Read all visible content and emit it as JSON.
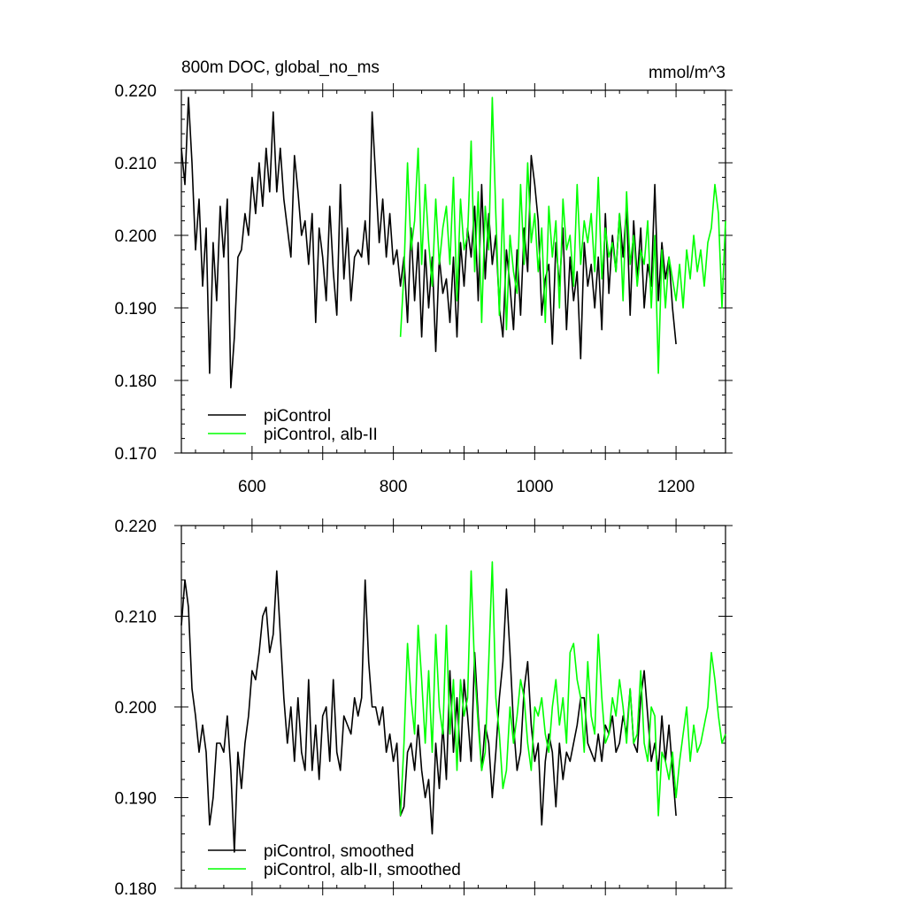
{
  "chart_data": [
    {
      "type": "line",
      "title": "800m DOC, global_no_ms",
      "units": "mmol/m^3",
      "xlim": [
        500,
        1270
      ],
      "ylim": [
        0.17,
        0.22
      ],
      "x_ticks": [
        600,
        800,
        1000,
        1200
      ],
      "x_tick_labels": [
        "600",
        "800",
        "1000",
        "1200"
      ],
      "y_ticks": [
        0.17,
        0.18,
        0.19,
        0.2,
        0.21,
        0.22
      ],
      "y_tick_labels": [
        "0.170",
        "0.180",
        "0.190",
        "0.200",
        "0.210",
        "0.220"
      ],
      "legend_position": "bottom-left",
      "series": [
        {
          "name": "piControl",
          "color": "#000000",
          "x": [
            500,
            505,
            510,
            515,
            520,
            525,
            530,
            535,
            540,
            545,
            550,
            555,
            560,
            565,
            570,
            575,
            580,
            585,
            590,
            595,
            600,
            605,
            610,
            615,
            620,
            625,
            630,
            635,
            640,
            645,
            650,
            655,
            660,
            665,
            670,
            675,
            680,
            685,
            690,
            695,
            700,
            705,
            710,
            715,
            720,
            725,
            730,
            735,
            740,
            745,
            750,
            755,
            760,
            765,
            770,
            775,
            780,
            785,
            790,
            795,
            800,
            805,
            810,
            815,
            820,
            825,
            830,
            835,
            840,
            845,
            850,
            855,
            860,
            865,
            870,
            875,
            880,
            885,
            890,
            895,
            900,
            905,
            910,
            915,
            920,
            925,
            930,
            935,
            940,
            945,
            950,
            955,
            960,
            965,
            970,
            975,
            980,
            985,
            990,
            995,
            1000,
            1005,
            1010,
            1015,
            1020,
            1025,
            1030,
            1035,
            1040,
            1045,
            1050,
            1055,
            1060,
            1065,
            1070,
            1075,
            1080,
            1085,
            1090,
            1095,
            1100,
            1105,
            1110,
            1115,
            1120,
            1125,
            1130,
            1135,
            1140,
            1145,
            1150,
            1155,
            1160,
            1165,
            1170,
            1175,
            1180,
            1185,
            1190,
            1195,
            1200
          ],
          "y": [
            0.212,
            0.207,
            0.219,
            0.21,
            0.198,
            0.205,
            0.193,
            0.201,
            0.181,
            0.199,
            0.191,
            0.204,
            0.197,
            0.205,
            0.179,
            0.186,
            0.197,
            0.198,
            0.203,
            0.2,
            0.208,
            0.203,
            0.21,
            0.204,
            0.212,
            0.206,
            0.217,
            0.206,
            0.212,
            0.205,
            0.201,
            0.197,
            0.211,
            0.206,
            0.2,
            0.202,
            0.196,
            0.203,
            0.188,
            0.201,
            0.197,
            0.191,
            0.204,
            0.195,
            0.189,
            0.207,
            0.194,
            0.201,
            0.191,
            0.197,
            0.198,
            0.197,
            0.202,
            0.196,
            0.217,
            0.208,
            0.199,
            0.205,
            0.197,
            0.203,
            0.196,
            0.198,
            0.193,
            0.197,
            0.188,
            0.201,
            0.191,
            0.199,
            0.186,
            0.198,
            0.19,
            0.197,
            0.184,
            0.197,
            0.192,
            0.194,
            0.188,
            0.197,
            0.186,
            0.199,
            0.193,
            0.201,
            0.197,
            0.204,
            0.191,
            0.207,
            0.194,
            0.203,
            0.196,
            0.2,
            0.19,
            0.186,
            0.198,
            0.193,
            0.187,
            0.198,
            0.189,
            0.201,
            0.195,
            0.211,
            0.207,
            0.202,
            0.189,
            0.194,
            0.196,
            0.185,
            0.199,
            0.193,
            0.201,
            0.187,
            0.197,
            0.191,
            0.195,
            0.183,
            0.199,
            0.193,
            0.196,
            0.19,
            0.197,
            0.187,
            0.203,
            0.192,
            0.2,
            0.195,
            0.203,
            0.197,
            0.204,
            0.189,
            0.202,
            0.194,
            0.201,
            0.19,
            0.196,
            0.193,
            0.207,
            0.191,
            0.199,
            0.194,
            0.197,
            0.19,
            0.185
          ]
        },
        {
          "name": "piControl, alb-II",
          "color": "#00ff00",
          "x": [
            810,
            815,
            820,
            825,
            830,
            835,
            840,
            845,
            850,
            855,
            860,
            865,
            870,
            875,
            880,
            885,
            890,
            895,
            900,
            905,
            910,
            915,
            920,
            925,
            930,
            935,
            940,
            945,
            950,
            955,
            960,
            965,
            970,
            975,
            980,
            985,
            990,
            995,
            1000,
            1005,
            1010,
            1015,
            1020,
            1025,
            1030,
            1035,
            1040,
            1045,
            1050,
            1055,
            1060,
            1065,
            1070,
            1075,
            1080,
            1085,
            1090,
            1095,
            1100,
            1105,
            1110,
            1115,
            1120,
            1125,
            1130,
            1135,
            1140,
            1145,
            1150,
            1155,
            1160,
            1165,
            1170,
            1175,
            1180,
            1185,
            1190,
            1195,
            1200,
            1205,
            1210,
            1215,
            1220,
            1225,
            1230,
            1235,
            1240,
            1245,
            1250,
            1255,
            1260,
            1265,
            1270
          ],
          "y": [
            0.186,
            0.195,
            0.21,
            0.198,
            0.202,
            0.212,
            0.196,
            0.207,
            0.199,
            0.193,
            0.205,
            0.196,
            0.201,
            0.204,
            0.196,
            0.208,
            0.191,
            0.205,
            0.198,
            0.2,
            0.213,
            0.195,
            0.206,
            0.188,
            0.204,
            0.198,
            0.219,
            0.203,
            0.189,
            0.205,
            0.187,
            0.2,
            0.195,
            0.192,
            0.207,
            0.196,
            0.21,
            0.199,
            0.203,
            0.195,
            0.201,
            0.188,
            0.204,
            0.197,
            0.202,
            0.19,
            0.205,
            0.198,
            0.2,
            0.193,
            0.207,
            0.196,
            0.202,
            0.199,
            0.203,
            0.195,
            0.208,
            0.194,
            0.201,
            0.197,
            0.199,
            0.195,
            0.203,
            0.191,
            0.206,
            0.196,
            0.2,
            0.193,
            0.198,
            0.196,
            0.202,
            0.19,
            0.2,
            0.181,
            0.198,
            0.19,
            0.197,
            0.194,
            0.191,
            0.196,
            0.19,
            0.198,
            0.194,
            0.2,
            0.195,
            0.198,
            0.193,
            0.199,
            0.201,
            0.207,
            0.203,
            0.19,
            0.202
          ]
        }
      ]
    },
    {
      "type": "line",
      "xlim": [
        500,
        1270
      ],
      "ylim": [
        0.18,
        0.22
      ],
      "x_ticks": [
        600,
        800,
        1000,
        1200
      ],
      "y_ticks": [
        0.18,
        0.19,
        0.2,
        0.21,
        0.22
      ],
      "y_tick_labels": [
        "0.180",
        "0.190",
        "0.200",
        "0.210",
        "0.220"
      ],
      "legend_position": "bottom-left",
      "series": [
        {
          "name": "piControl, smoothed",
          "color": "#000000",
          "x": [
            500,
            505,
            510,
            515,
            520,
            525,
            530,
            535,
            540,
            545,
            550,
            555,
            560,
            565,
            570,
            575,
            580,
            585,
            590,
            595,
            600,
            605,
            610,
            615,
            620,
            625,
            630,
            635,
            640,
            645,
            650,
            655,
            660,
            665,
            670,
            675,
            680,
            685,
            690,
            695,
            700,
            705,
            710,
            715,
            720,
            725,
            730,
            735,
            740,
            745,
            750,
            755,
            760,
            765,
            770,
            775,
            780,
            785,
            790,
            795,
            800,
            805,
            810,
            815,
            820,
            825,
            830,
            835,
            840,
            845,
            850,
            855,
            860,
            865,
            870,
            875,
            880,
            885,
            890,
            895,
            900,
            905,
            910,
            915,
            920,
            925,
            930,
            935,
            940,
            945,
            950,
            955,
            960,
            965,
            970,
            975,
            980,
            985,
            990,
            995,
            1000,
            1005,
            1010,
            1015,
            1020,
            1025,
            1030,
            1035,
            1040,
            1045,
            1050,
            1055,
            1060,
            1065,
            1070,
            1075,
            1080,
            1085,
            1090,
            1095,
            1100,
            1105,
            1110,
            1115,
            1120,
            1125,
            1130,
            1135,
            1140,
            1145,
            1150,
            1155,
            1160,
            1165,
            1170,
            1175,
            1180,
            1185,
            1190,
            1195,
            1200
          ],
          "y": [
            0.209,
            0.214,
            0.211,
            0.202,
            0.199,
            0.195,
            0.198,
            0.195,
            0.187,
            0.19,
            0.196,
            0.196,
            0.195,
            0.199,
            0.193,
            0.184,
            0.195,
            0.191,
            0.196,
            0.199,
            0.204,
            0.203,
            0.206,
            0.21,
            0.211,
            0.206,
            0.208,
            0.215,
            0.208,
            0.201,
            0.196,
            0.2,
            0.194,
            0.201,
            0.195,
            0.193,
            0.203,
            0.193,
            0.198,
            0.192,
            0.199,
            0.2,
            0.194,
            0.203,
            0.195,
            0.193,
            0.199,
            0.198,
            0.197,
            0.201,
            0.199,
            0.201,
            0.214,
            0.205,
            0.2,
            0.2,
            0.198,
            0.2,
            0.195,
            0.197,
            0.194,
            0.196,
            0.188,
            0.189,
            0.195,
            0.196,
            0.193,
            0.198,
            0.193,
            0.19,
            0.192,
            0.186,
            0.196,
            0.191,
            0.198,
            0.192,
            0.204,
            0.195,
            0.201,
            0.194,
            0.203,
            0.199,
            0.194,
            0.206,
            0.199,
            0.193,
            0.198,
            0.196,
            0.19,
            0.195,
            0.201,
            0.205,
            0.213,
            0.206,
            0.198,
            0.193,
            0.195,
            0.202,
            0.205,
            0.198,
            0.194,
            0.196,
            0.187,
            0.194,
            0.197,
            0.195,
            0.189,
            0.196,
            0.192,
            0.195,
            0.194,
            0.196,
            0.198,
            0.201,
            0.201,
            0.196,
            0.195,
            0.194,
            0.197,
            0.194,
            0.198,
            0.197,
            0.199,
            0.195,
            0.196,
            0.199,
            0.197,
            0.202,
            0.196,
            0.195,
            0.201,
            0.204,
            0.199,
            0.194,
            0.196,
            0.193,
            0.199,
            0.194,
            0.198,
            0.193,
            0.188
          ]
        },
        {
          "name": "piControl, alb-II, smoothed",
          "color": "#00ff00",
          "x": [
            810,
            815,
            820,
            825,
            830,
            835,
            840,
            845,
            850,
            855,
            860,
            865,
            870,
            875,
            880,
            885,
            890,
            895,
            900,
            905,
            910,
            915,
            920,
            925,
            930,
            935,
            940,
            945,
            950,
            955,
            960,
            965,
            970,
            975,
            980,
            985,
            990,
            995,
            1000,
            1005,
            1010,
            1015,
            1020,
            1025,
            1030,
            1035,
            1040,
            1045,
            1050,
            1055,
            1060,
            1065,
            1070,
            1075,
            1080,
            1085,
            1090,
            1095,
            1100,
            1105,
            1110,
            1115,
            1120,
            1125,
            1130,
            1135,
            1140,
            1145,
            1150,
            1155,
            1160,
            1165,
            1170,
            1175,
            1180,
            1185,
            1190,
            1195,
            1200,
            1205,
            1210,
            1215,
            1220,
            1225,
            1230,
            1235,
            1240,
            1245,
            1250,
            1255,
            1260,
            1265,
            1270
          ],
          "y": [
            0.188,
            0.196,
            0.207,
            0.201,
            0.197,
            0.209,
            0.203,
            0.196,
            0.204,
            0.195,
            0.208,
            0.2,
            0.197,
            0.209,
            0.197,
            0.203,
            0.193,
            0.203,
            0.199,
            0.201,
            0.215,
            0.204,
            0.198,
            0.193,
            0.195,
            0.205,
            0.216,
            0.201,
            0.197,
            0.191,
            0.193,
            0.2,
            0.196,
            0.199,
            0.203,
            0.201,
            0.196,
            0.193,
            0.2,
            0.199,
            0.201,
            0.197,
            0.195,
            0.2,
            0.203,
            0.198,
            0.201,
            0.196,
            0.206,
            0.207,
            0.203,
            0.201,
            0.195,
            0.205,
            0.199,
            0.197,
            0.208,
            0.201,
            0.196,
            0.197,
            0.201,
            0.199,
            0.203,
            0.2,
            0.196,
            0.202,
            0.196,
            0.197,
            0.204,
            0.196,
            0.194,
            0.2,
            0.199,
            0.188,
            0.195,
            0.194,
            0.192,
            0.195,
            0.19,
            0.194,
            0.197,
            0.2,
            0.194,
            0.198,
            0.195,
            0.196,
            0.198,
            0.2,
            0.206,
            0.203,
            0.199,
            0.196,
            0.197
          ]
        }
      ]
    }
  ]
}
